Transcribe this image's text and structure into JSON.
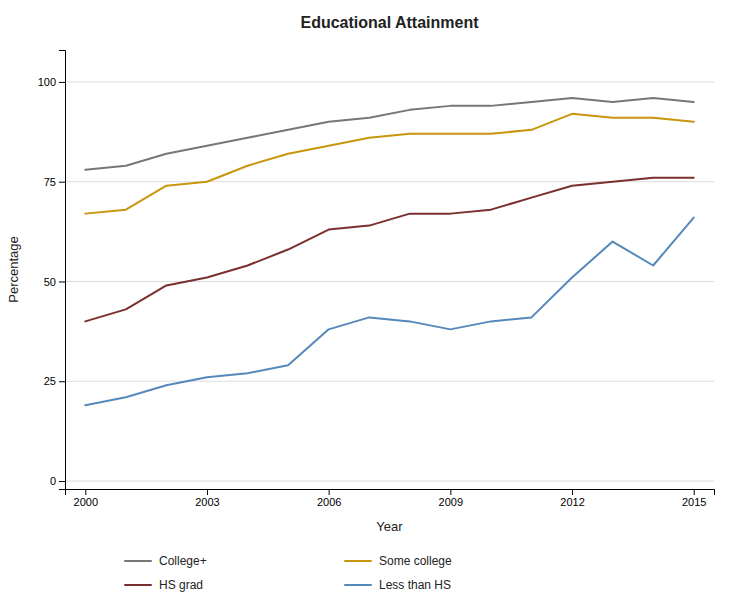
{
  "chart_data": {
    "type": "line",
    "title": "Educational Attainment",
    "xlabel": "Year",
    "ylabel": "Percentage",
    "x": [
      2000,
      2001,
      2002,
      2003,
      2004,
      2005,
      2006,
      2007,
      2008,
      2009,
      2010,
      2011,
      2012,
      2013,
      2014,
      2015
    ],
    "series": [
      {
        "name": "College+",
        "color": "#777777",
        "values": [
          78,
          79,
          82,
          84,
          86,
          88,
          90,
          91,
          93,
          94,
          94,
          95,
          96,
          95,
          96,
          95
        ]
      },
      {
        "name": "Some college",
        "color": "#c8960c",
        "values": [
          67,
          68,
          74,
          75,
          79,
          82,
          84,
          86,
          87,
          87,
          87,
          88,
          92,
          91,
          91,
          90
        ]
      },
      {
        "name": "HS grad",
        "color": "#7a2f2f",
        "values": [
          40,
          43,
          49,
          51,
          54,
          58,
          63,
          64,
          67,
          67,
          68,
          71,
          74,
          75,
          76,
          76
        ]
      },
      {
        "name": "Less than HS",
        "color": "#5588bb",
        "values": [
          19,
          21,
          24,
          26,
          27,
          29,
          38,
          41,
          40,
          38,
          40,
          41,
          51,
          60,
          54,
          66
        ]
      }
    ],
    "xlim": [
      1999.5,
      2015.5
    ],
    "ylim": [
      -2,
      108
    ],
    "xticks": [
      2000,
      2003,
      2006,
      2009,
      2012,
      2015
    ],
    "yticks": [
      0,
      25,
      50,
      75,
      100
    ],
    "grid": true,
    "legend": "bottom"
  }
}
